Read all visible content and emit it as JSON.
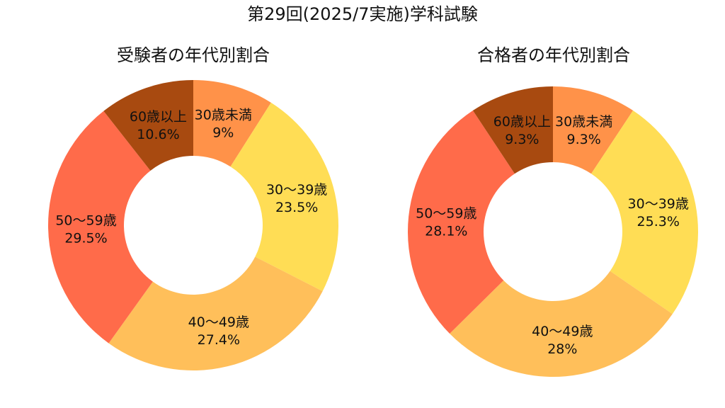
{
  "figure": {
    "title": "第29回(2025/7実施)学科試験"
  },
  "chart_data": [
    {
      "type": "donut",
      "title": "受験者の年代別割合",
      "categories": [
        "30歳未満",
        "30～39歳",
        "40～49歳",
        "50～59歳",
        "60歳以上"
      ],
      "values": [
        9.0,
        23.5,
        27.4,
        29.5,
        10.6
      ],
      "value_labels": [
        "9%",
        "23.5%",
        "27.4%",
        "29.5%",
        "10.6%"
      ],
      "colors": [
        "#FF9249",
        "#FFDD55",
        "#FFBF5A",
        "#FF6B4A",
        "#A84A10"
      ]
    },
    {
      "type": "donut",
      "title": "合格者の年代別割合",
      "categories": [
        "30歳未満",
        "30～39歳",
        "40～49歳",
        "50～59歳",
        "60歳以上"
      ],
      "values": [
        9.3,
        25.3,
        28.0,
        28.1,
        9.3
      ],
      "value_labels": [
        "9.3%",
        "25.3%",
        "28%",
        "28.1%",
        "9.3%"
      ],
      "colors": [
        "#FF9249",
        "#FFDD55",
        "#FFBF5A",
        "#FF6B4A",
        "#A84A10"
      ]
    }
  ]
}
